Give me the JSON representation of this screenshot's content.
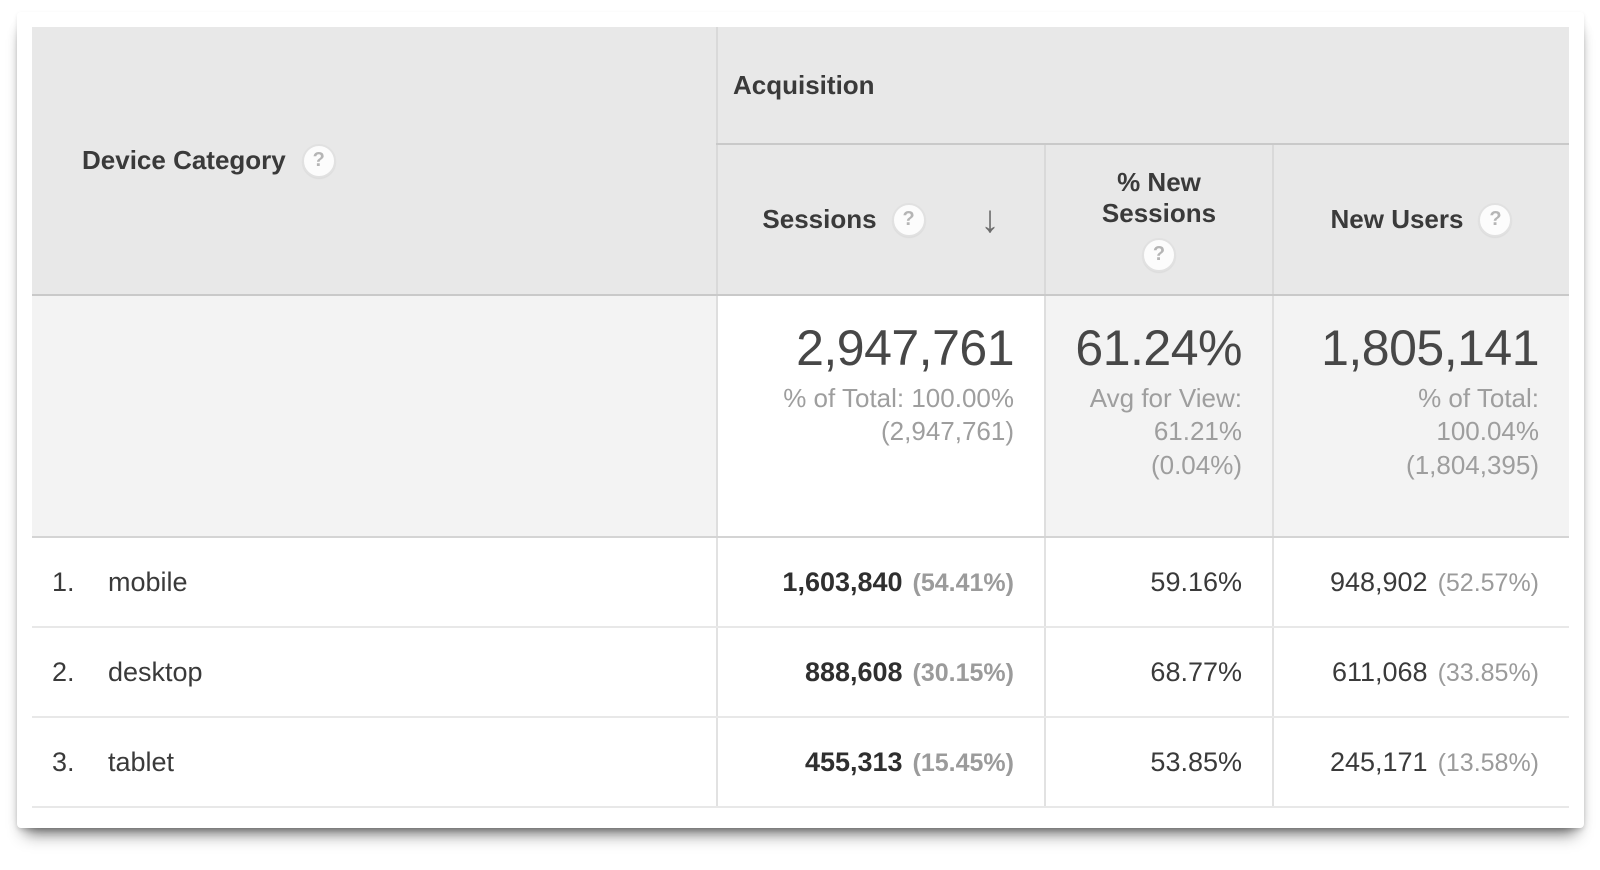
{
  "table": {
    "headers": {
      "device_category": "Device Category",
      "acquisition_group": "Acquisition",
      "sessions": "Sessions",
      "pct_new_sessions": "% New Sessions",
      "new_users": "New Users"
    },
    "icons": {
      "help": "?",
      "sort_desc": "↓"
    },
    "totals": {
      "sessions_value": "2,947,761",
      "sessions_sub1": "% of Total: 100.00%",
      "sessions_sub2": "(2,947,761)",
      "new_sessions_value": "61.24%",
      "new_sessions_sub1": "Avg for View:",
      "new_sessions_sub2": "61.21%",
      "new_sessions_sub3": "(0.04%)",
      "new_users_value": "1,805,141",
      "new_users_sub1": "% of Total:",
      "new_users_sub2": "100.04%",
      "new_users_sub3": "(1,804,395)"
    },
    "rows": [
      {
        "index": "1.",
        "label": "mobile",
        "sessions": "1,603,840",
        "sessions_pct": "(54.41%)",
        "new_sessions": "59.16%",
        "new_users": "948,902",
        "new_users_pct": "(52.57%)"
      },
      {
        "index": "2.",
        "label": "desktop",
        "sessions": "888,608",
        "sessions_pct": "(30.15%)",
        "new_sessions": "68.77%",
        "new_users": "611,068",
        "new_users_pct": "(33.85%)"
      },
      {
        "index": "3.",
        "label": "tablet",
        "sessions": "455,313",
        "sessions_pct": "(15.45%)",
        "new_sessions": "53.85%",
        "new_users": "245,171",
        "new_users_pct": "(13.58%)"
      }
    ]
  },
  "colors": {
    "header_bg": "#e8e8e8",
    "shaded_cell_bg": "#f4f4f4",
    "text_dark": "#3a3a3a",
    "text_gray": "#9e9e9e",
    "arrow_gray": "#6d6d6d"
  }
}
